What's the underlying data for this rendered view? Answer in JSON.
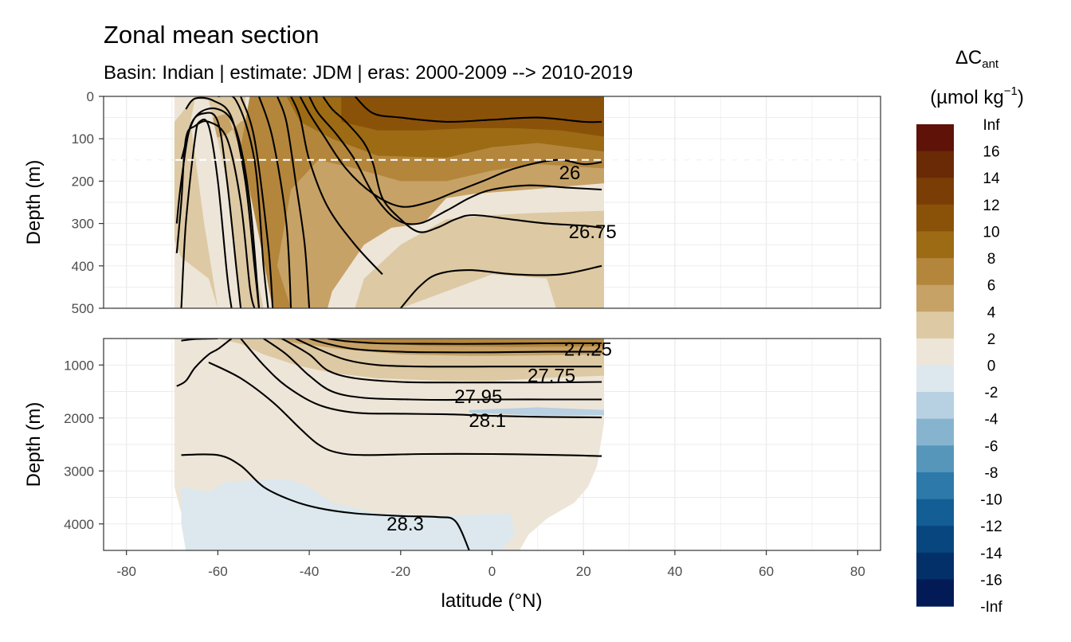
{
  "chart_data": {
    "type": "heatmap",
    "title": "Zonal mean section",
    "subtitle": "Basin: Indian | estimate: JDM  | eras: 2000-2009 --> 2010-2019",
    "xlabel": "latitude (°N)",
    "ylabel": "Depth (m)",
    "xlim": [
      -85,
      85
    ],
    "x_ticks": [
      "-80",
      "-60",
      "-40",
      "-20",
      "0",
      "20",
      "40",
      "60",
      "80"
    ],
    "panels": [
      {
        "name": "upper",
        "ylim": [
          0,
          500
        ],
        "y_ticks": [
          "0",
          "100",
          "200",
          "300",
          "400",
          "500"
        ],
        "reference_depth": 150
      },
      {
        "name": "lower",
        "ylim": [
          500,
          4500
        ],
        "y_ticks": [
          "1000",
          "2000",
          "3000",
          "4000"
        ]
      }
    ],
    "legend": {
      "title_main": "ΔC",
      "title_sub": "ant",
      "unit_open": "(µmol kg",
      "unit_sup": "−1",
      "unit_close": ")",
      "placement": "right",
      "bins": [
        {
          "label": "Inf",
          "color": "#5e1208"
        },
        {
          "label": "16",
          "color": "#6a2a06"
        },
        {
          "label": "14",
          "color": "#7a3d05"
        },
        {
          "label": "12",
          "color": "#8a5208"
        },
        {
          "label": "10",
          "color": "#9c6b14"
        },
        {
          "label": "8",
          "color": "#b3863c"
        },
        {
          "label": "6",
          "color": "#c7a266"
        },
        {
          "label": "4",
          "color": "#ddc9a3"
        },
        {
          "label": "2",
          "color": "#ede5d8"
        },
        {
          "label": "0",
          "color": "#dce8ee"
        },
        {
          "label": "-2",
          "color": "#b7d0e2"
        },
        {
          "label": "-4",
          "color": "#86b4cf"
        },
        {
          "label": "-6",
          "color": "#5696bb"
        },
        {
          "label": "-8",
          "color": "#2d79a9"
        },
        {
          "label": "-10",
          "color": "#135e95"
        },
        {
          "label": "-12",
          "color": "#07467f"
        },
        {
          "label": "-14",
          "color": "#033068"
        },
        {
          "label": "-16",
          "color": "#021a55"
        },
        {
          "label": "-Inf",
          "color": ""
        }
      ]
    },
    "contour_labels": [
      {
        "text": "26",
        "lat": 17,
        "depth": 180
      },
      {
        "text": "26.75",
        "lat": 22,
        "depth": 320
      },
      {
        "text": "27.25",
        "lat": 21,
        "depth": 700
      },
      {
        "text": "27.75",
        "lat": 13,
        "depth": 1200
      },
      {
        "text": "27.95",
        "lat": -3,
        "depth": 1600
      },
      {
        "text": "28.1",
        "lat": -1,
        "depth": 2050
      },
      {
        "text": "28.3",
        "lat": -19,
        "depth": 4000
      }
    ],
    "colors": {
      "bin_max": "#5e1208",
      "bin_14": "#7a3d05",
      "bin_12": "#8a5208",
      "bin_10": "#9c6b14",
      "bin_8": "#b3863c",
      "bin_6": "#c7a266",
      "bin_4": "#ddc9a3",
      "bin_2": "#ede5d8",
      "bin_0": "#dce8ee",
      "bin_neg2": "#b7d0e2"
    }
  }
}
